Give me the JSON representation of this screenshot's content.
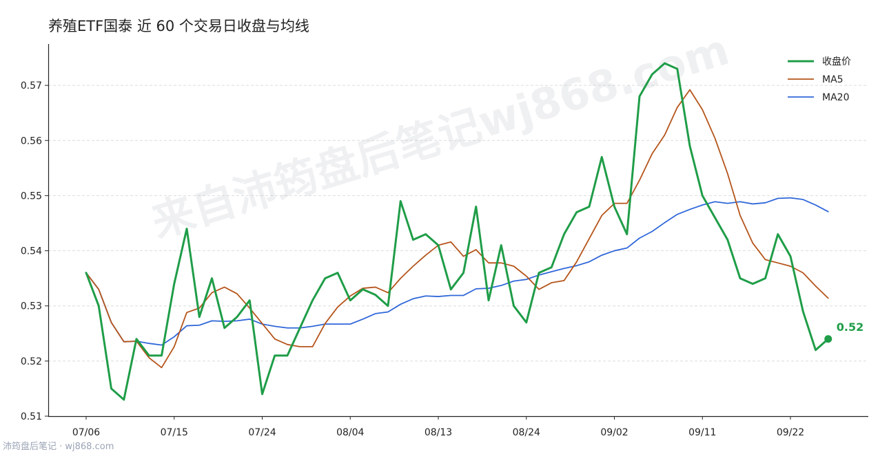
{
  "chart_data": {
    "type": "line",
    "title": "养殖ETF国泰 近 60 个交易日收盘与均线",
    "xlabel": "",
    "ylabel": "",
    "ylim": [
      0.51,
      0.5775
    ],
    "yticks": [
      0.51,
      0.52,
      0.53,
      0.54,
      0.55,
      0.56,
      0.57
    ],
    "xtick_labels": [
      {
        "index": 0,
        "label": "07/06"
      },
      {
        "index": 7,
        "label": "07/15"
      },
      {
        "index": 14,
        "label": "07/24"
      },
      {
        "index": 21,
        "label": "08/04"
      },
      {
        "index": 28,
        "label": "08/13"
      },
      {
        "index": 35,
        "label": "08/24"
      },
      {
        "index": 42,
        "label": "09/02"
      },
      {
        "index": 49,
        "label": "09/11"
      },
      {
        "index": 56,
        "label": "09/22"
      }
    ],
    "grid": "horizontal-dashed",
    "legend_position": "top-right",
    "series": [
      {
        "name": "收盘价",
        "color": "#1f9d48",
        "values": [
          0.536,
          0.53,
          0.515,
          0.513,
          0.524,
          0.521,
          0.521,
          0.534,
          0.544,
          0.528,
          0.535,
          0.526,
          0.528,
          0.531,
          0.514,
          0.521,
          0.521,
          0.526,
          0.531,
          0.535,
          0.536,
          0.531,
          0.533,
          0.532,
          0.53,
          0.549,
          0.542,
          0.543,
          0.541,
          0.533,
          0.536,
          0.548,
          0.531,
          0.541,
          0.53,
          0.527,
          0.536,
          0.537,
          0.543,
          0.547,
          0.548,
          0.557,
          0.548,
          0.543,
          0.568,
          0.572,
          0.574,
          0.573,
          0.559,
          0.55,
          0.546,
          0.542,
          0.535,
          0.534,
          0.535,
          0.543,
          0.539,
          0.529,
          0.522,
          0.524
        ]
      },
      {
        "name": "MA5",
        "color": "#b5541a",
        "values": [
          0.536,
          0.533,
          0.527,
          0.5235,
          0.5236,
          0.5206,
          0.5188,
          0.5226,
          0.5288,
          0.5296,
          0.5324,
          0.5334,
          0.5322,
          0.5296,
          0.5268,
          0.524,
          0.523,
          0.5226,
          0.5226,
          0.5268,
          0.5298,
          0.5318,
          0.5332,
          0.5334,
          0.5324,
          0.535,
          0.5372,
          0.5392,
          0.541,
          0.5416,
          0.539,
          0.5402,
          0.5378,
          0.5378,
          0.5372,
          0.5354,
          0.533,
          0.5342,
          0.5346,
          0.538,
          0.5422,
          0.5464,
          0.5486,
          0.5486,
          0.5528,
          0.5576,
          0.561,
          0.566,
          0.5692,
          0.5656,
          0.5604,
          0.554,
          0.5464,
          0.5414,
          0.5384,
          0.5378,
          0.5372,
          0.536,
          0.5336,
          0.5314
        ]
      },
      {
        "name": "MA20",
        "color": "#2f67d8",
        "values": [
          0.536,
          0.533,
          0.527,
          0.5235,
          0.5236,
          0.5232,
          0.5229,
          0.5244,
          0.5264,
          0.5265,
          0.5273,
          0.5272,
          0.5273,
          0.5276,
          0.5267,
          0.5263,
          0.526,
          0.526,
          0.5263,
          0.5267,
          0.5267,
          0.5267,
          0.5276,
          0.5286,
          0.5289,
          0.5303,
          0.5313,
          0.5318,
          0.5317,
          0.5319,
          0.5319,
          0.5331,
          0.5332,
          0.5337,
          0.5345,
          0.5348,
          0.5356,
          0.5362,
          0.5368,
          0.5373,
          0.538,
          0.5392,
          0.54,
          0.5405,
          0.5423,
          0.5435,
          0.5451,
          0.5466,
          0.5475,
          0.5483,
          0.5489,
          0.5486,
          0.5489,
          0.5485,
          0.5487,
          0.5495,
          0.5496,
          0.5493,
          0.5483,
          0.5471
        ]
      }
    ],
    "last_point": {
      "series": "收盘价",
      "label": "0.52"
    },
    "watermark": "来自沛筠盘后笔记wj868.com",
    "footer": "沛筠盘后笔记 · wj868.com"
  }
}
